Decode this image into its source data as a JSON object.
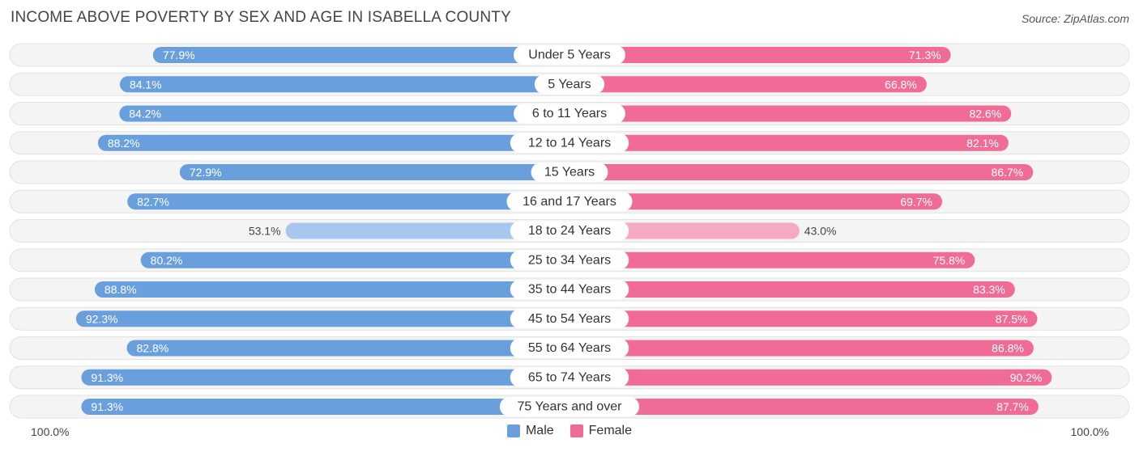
{
  "title": "INCOME ABOVE POVERTY BY SEX AND AGE IN ISABELLA COUNTY",
  "source": "Source: ZipAtlas.com",
  "axis": {
    "left_label": "100.0%",
    "right_label": "100.0%"
  },
  "legend": {
    "male_label": "Male",
    "female_label": "Female"
  },
  "colors": {
    "male": "#6a9fdd",
    "male_light": "#a9c7ee",
    "female": "#f06c97",
    "female_light": "#f6a9c2",
    "track": "#f1f1f1"
  },
  "chart_data": {
    "type": "bar",
    "orientation": "horizontal-diverging",
    "title": "INCOME ABOVE POVERTY BY SEX AND AGE IN ISABELLA COUNTY",
    "xlim": [
      0,
      100
    ],
    "categories": [
      "Under 5 Years",
      "5 Years",
      "6 to 11 Years",
      "12 to 14 Years",
      "15 Years",
      "16 and 17 Years",
      "18 to 24 Years",
      "25 to 34 Years",
      "35 to 44 Years",
      "45 to 54 Years",
      "55 to 64 Years",
      "65 to 74 Years",
      "75 Years and over"
    ],
    "series": [
      {
        "name": "Male",
        "values": [
          77.9,
          84.1,
          84.2,
          88.2,
          72.9,
          82.7,
          53.1,
          80.2,
          88.8,
          92.3,
          82.8,
          91.3,
          91.3
        ],
        "labels": [
          "77.9%",
          "84.1%",
          "84.2%",
          "88.2%",
          "72.9%",
          "82.7%",
          "53.1%",
          "80.2%",
          "88.8%",
          "92.3%",
          "82.8%",
          "91.3%",
          "91.3%"
        ]
      },
      {
        "name": "Female",
        "values": [
          71.3,
          66.8,
          82.6,
          82.1,
          86.7,
          69.7,
          43.0,
          75.8,
          83.3,
          87.5,
          86.8,
          90.2,
          87.7
        ],
        "labels": [
          "71.3%",
          "66.8%",
          "82.6%",
          "82.1%",
          "86.7%",
          "69.7%",
          "43.0%",
          "75.8%",
          "83.3%",
          "87.5%",
          "86.8%",
          "90.2%",
          "87.7%"
        ]
      }
    ]
  }
}
